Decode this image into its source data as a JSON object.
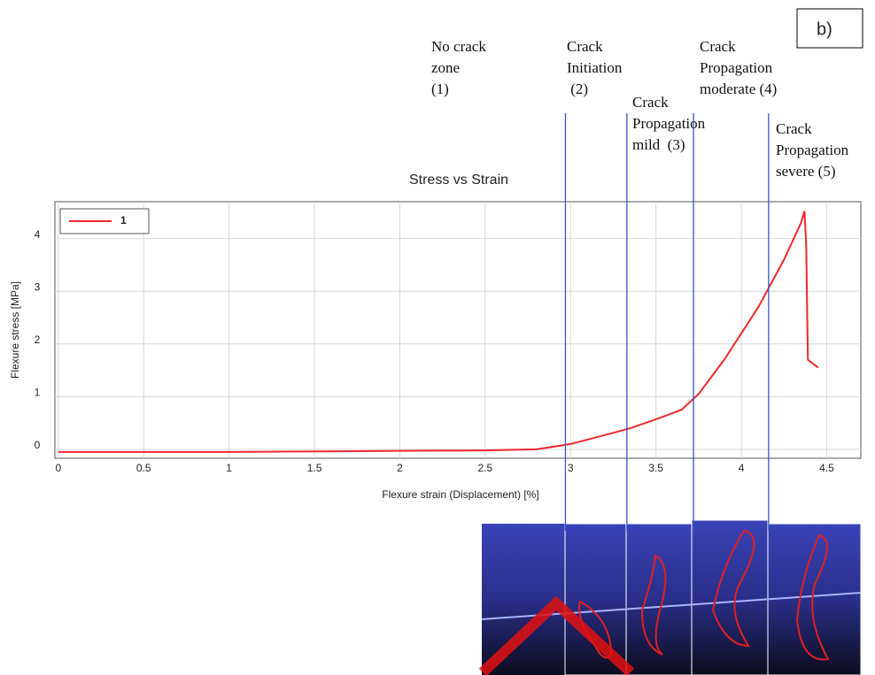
{
  "chart_data": {
    "type": "line",
    "title": "Stress vs Strain",
    "x_label": "Flexure strain (Displacement) [%]",
    "y_label": "Flexure stress [MPa]",
    "panel_label": "b)",
    "x": [
      0,
      1,
      2,
      2.5,
      2.8,
      3.0,
      3.2,
      3.35,
      3.5,
      3.65,
      3.75,
      3.9,
      4.1,
      4.25,
      4.35,
      4.37,
      4.38,
      4.39,
      4.45
    ],
    "series": [
      {
        "name": "1",
        "color": "#f0282d",
        "values": [
          -0.05,
          -0.05,
          -0.03,
          -0.02,
          0,
          0.1,
          0.27,
          0.4,
          0.57,
          0.75,
          1.05,
          1.7,
          2.7,
          3.6,
          4.3,
          4.52,
          3.9,
          1.7,
          1.55
        ]
      }
    ],
    "xlim": [
      -0.02,
      4.7
    ],
    "ylim": [
      -0.17,
      4.7
    ],
    "xticks": [
      0,
      0.5,
      1,
      1.5,
      2,
      2.5,
      3,
      3.5,
      4,
      4.5
    ],
    "yticks": [
      0,
      1,
      2,
      3,
      4
    ],
    "grid": true,
    "legend": "upper-left",
    "zone_boundaries": [
      2.97,
      3.33,
      3.72,
      4.16
    ],
    "annotations": [
      {
        "lines": [
          "No crack",
          "zone",
          "(1)"
        ]
      },
      {
        "lines": [
          "Crack",
          "Initiation",
          " (2)"
        ]
      },
      {
        "lines": [
          "Crack",
          "Propagation",
          "mild  (3)"
        ]
      },
      {
        "lines": [
          "Crack",
          "Propagation",
          "moderate (4)"
        ]
      },
      {
        "lines": [
          "Crack",
          "Propagation",
          "severe (5)"
        ]
      }
    ]
  }
}
